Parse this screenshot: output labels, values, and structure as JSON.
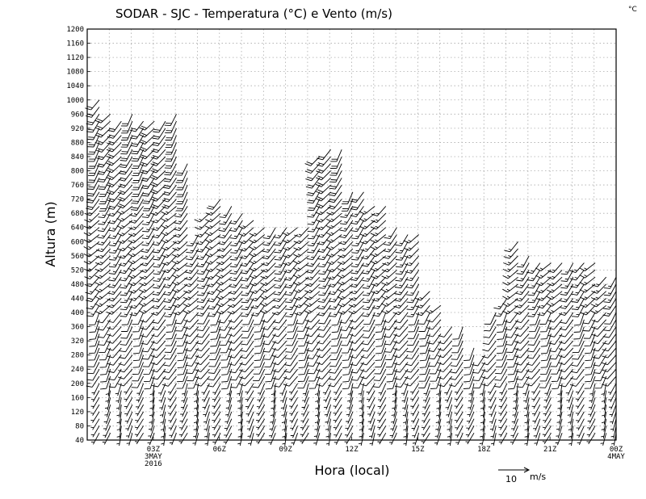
{
  "chart_data": {
    "type": "wind-barb",
    "title": "SODAR - SJC - Temperatura (°C) e Vento (m/s)",
    "corner_unit": "°C",
    "xlabel": "Hora (local)",
    "ylabel": "Altura (m)",
    "xlim": [
      0,
      24
    ],
    "ylim": [
      40,
      1200
    ],
    "yticks": [
      40,
      80,
      120,
      160,
      200,
      240,
      280,
      320,
      360,
      400,
      440,
      480,
      520,
      560,
      600,
      640,
      680,
      720,
      760,
      800,
      840,
      880,
      920,
      960,
      1000,
      1040,
      1080,
      1120,
      1160,
      1200
    ],
    "xticks": [
      {
        "x": 3,
        "lines": [
          "03Z",
          "3MAY",
          "2016"
        ]
      },
      {
        "x": 6,
        "lines": [
          "06Z"
        ]
      },
      {
        "x": 9,
        "lines": [
          "09Z"
        ]
      },
      {
        "x": 12,
        "lines": [
          "12Z"
        ]
      },
      {
        "x": 15,
        "lines": [
          "15Z"
        ]
      },
      {
        "x": 18,
        "lines": [
          "18Z"
        ]
      },
      {
        "x": 21,
        "lines": [
          "21Z"
        ]
      },
      {
        "x": 24,
        "lines": [
          "00Z",
          "4MAY"
        ]
      }
    ],
    "grid": true,
    "reference_vector": {
      "value": 10,
      "unit": "m/s",
      "label": "10",
      "unit_label": "m/s"
    },
    "profile_times": [
      0.55,
      1.05,
      1.55,
      2.05,
      2.55,
      3.05,
      3.55,
      4.05,
      4.55,
      5.05,
      5.55,
      6.05,
      6.55,
      7.05,
      7.55,
      8.05,
      8.55,
      9.05,
      9.55,
      10.05,
      10.55,
      11.05,
      11.55,
      12.05,
      12.55,
      13.05,
      13.55,
      14.05,
      14.55,
      15.05,
      15.55,
      16.05,
      16.55,
      17.05,
      17.55,
      18.05,
      18.55,
      19.05,
      19.55,
      20.05,
      20.55,
      21.05,
      21.55,
      22.05,
      22.55,
      23.05,
      23.55,
      24.0
    ],
    "profile_tops": [
      1000,
      960,
      950,
      960,
      950,
      950,
      950,
      960,
      820,
      620,
      690,
      720,
      700,
      680,
      660,
      650,
      640,
      640,
      640,
      640,
      840,
      860,
      860,
      740,
      740,
      710,
      700,
      650,
      630,
      630,
      470,
      420,
      370,
      370,
      300,
      290,
      400,
      440,
      600,
      560,
      550,
      550,
      550,
      550,
      550,
      550,
      500,
      500
    ],
    "layers": [
      {
        "z_max": 200,
        "speed": 4,
        "dir": 200
      },
      {
        "z_max": 400,
        "speed": 10,
        "dir": 210
      },
      {
        "z_max": 700,
        "speed": 15,
        "dir": 220
      },
      {
        "z_max": 1200,
        "speed": 18,
        "dir": 215
      }
    ]
  }
}
